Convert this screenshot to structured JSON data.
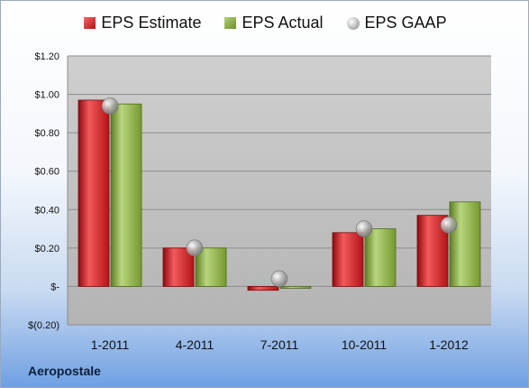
{
  "chart_data": {
    "type": "bar",
    "categories": [
      "1-2011",
      "4-2011",
      "7-2011",
      "10-2011",
      "1-2012"
    ],
    "series": [
      {
        "name": "EPS Estimate",
        "values": [
          0.97,
          0.2,
          -0.02,
          0.28,
          0.37
        ],
        "color": "#c8161b"
      },
      {
        "name": "EPS Actual",
        "values": [
          0.95,
          0.2,
          -0.01,
          0.3,
          0.44
        ],
        "color": "#85a83a"
      },
      {
        "name": "EPS GAAP",
        "values": [
          0.94,
          0.2,
          0.04,
          0.3,
          0.32
        ],
        "color": "#a0a0a0",
        "marker": "circle"
      }
    ],
    "ylim": [
      -0.2,
      1.2
    ],
    "yticks": [
      -0.2,
      0.0,
      0.2,
      0.4,
      0.6,
      0.8,
      1.0,
      1.2
    ],
    "ytick_labels": [
      "$(0.20)",
      "$-",
      "$0.20",
      "$0.40",
      "$0.60",
      "$0.80",
      "$1.00",
      "$1.20"
    ],
    "grid": true,
    "legend_position": "top",
    "title": "",
    "xlabel": "",
    "ylabel": ""
  },
  "footer": {
    "company": "Aeropostale"
  }
}
